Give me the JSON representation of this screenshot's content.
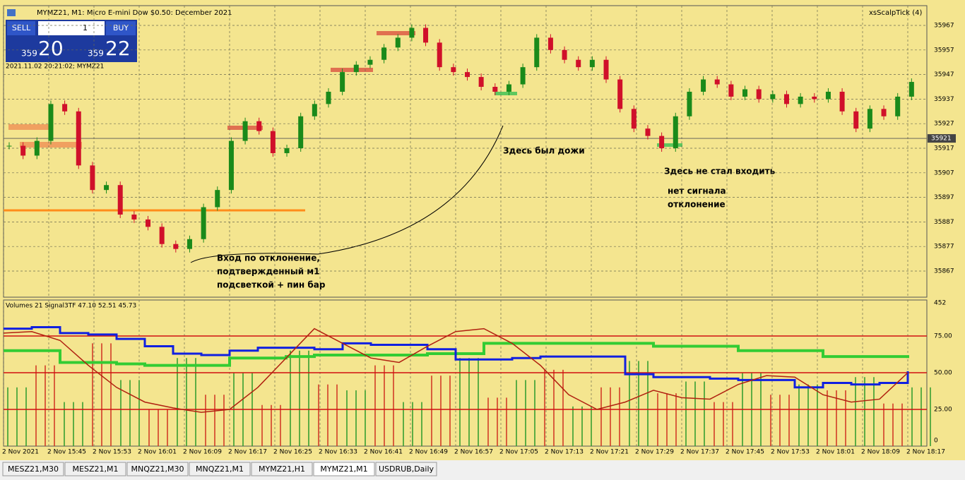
{
  "window": {
    "title": "MYMZ21, M1:  Micro E-mini Dow $0.50: December 2021",
    "indicator_name": "xsScalpTick (4)"
  },
  "trade_panel": {
    "sell": "SELL",
    "buy": "BUY",
    "lot": "1",
    "bid_big": "359",
    "bid_small": "20",
    "ask_big": "359",
    "ask_small": "22"
  },
  "timestamp": "2021.11.02 20:21:02; MYMZ21",
  "price_chart": {
    "ylim": [
      35862,
      35972
    ],
    "yticks": [
      35967,
      35957,
      35947,
      35937,
      35927,
      35917,
      35907,
      35897,
      35887,
      35877,
      35867
    ],
    "current_price": 35921,
    "closes": [
      35918,
      35914,
      35920,
      35935,
      35932,
      35910,
      35900,
      35902,
      35890,
      35888,
      35885,
      35878,
      35876,
      35880,
      35893,
      35900,
      35920,
      35928,
      35924,
      35915,
      35917,
      35930,
      35935,
      35940,
      35948,
      35951,
      35953,
      35958,
      35962,
      35966,
      35960,
      35950,
      35948,
      35946,
      35942,
      35940,
      35943,
      35950,
      35962,
      35957,
      35953,
      35950,
      35953,
      35945,
      35933,
      35925,
      35922,
      35917,
      35930,
      35940,
      35945,
      35943,
      35938,
      35941,
      35937,
      35939,
      35935,
      35938,
      35937,
      35940,
      35932,
      35925,
      35933,
      35930,
      35938,
      35944
    ]
  },
  "annotations": [
    "Вход по отклонение,",
    "подтвержденный м1",
    "подсветкой + пин бар",
    "Здесь был дожи",
    "Здесь не стал входить",
    "нет сигнала",
    "отклонение"
  ],
  "indicator": {
    "label": "Volumes 21 Signal3TF 47.10 52.51 45.73",
    "ylim": [
      0,
      100
    ],
    "top_label": "452",
    "bottom_label": "0",
    "yticks": [
      {
        "value": 75,
        "label": "75.00"
      },
      {
        "value": 50,
        "label": "50.00"
      },
      {
        "value": 25,
        "label": "25.00"
      }
    ],
    "blue": [
      80,
      81,
      77,
      76,
      73,
      68,
      63,
      62,
      65,
      67,
      67,
      66,
      70,
      69,
      69,
      66,
      59,
      59,
      60,
      61,
      61,
      61,
      49,
      47,
      47,
      46,
      45,
      45,
      40,
      43,
      42,
      43,
      51
    ],
    "green": [
      65,
      65,
      57,
      57,
      56,
      55,
      55,
      55,
      60,
      60,
      61,
      62,
      62,
      62,
      62,
      63,
      63,
      70,
      70,
      70,
      70,
      70,
      70,
      68,
      68,
      68,
      65,
      65,
      65,
      61,
      61,
      61,
      60
    ],
    "brown": [
      77,
      78,
      72,
      55,
      40,
      30,
      26,
      23,
      25,
      40,
      60,
      80,
      70,
      60,
      57,
      68,
      78,
      80,
      70,
      55,
      35,
      25,
      30,
      38,
      33,
      32,
      42,
      48,
      47,
      35,
      30,
      32,
      50
    ],
    "volumes": [
      40,
      55,
      30,
      70,
      45,
      25,
      60,
      35,
      50,
      28,
      65,
      42,
      38,
      55,
      30,
      48,
      60,
      33,
      45,
      52,
      27,
      40,
      58,
      36,
      44,
      30,
      50,
      35,
      42,
      38,
      47,
      29,
      40
    ]
  },
  "time_labels": [
    "2 Nov 2021",
    "2 Nov 15:45",
    "2 Nov 15:53",
    "2 Nov 16:01",
    "2 Nov 16:09",
    "2 Nov 16:17",
    "2 Nov 16:25",
    "2 Nov 16:33",
    "2 Nov 16:41",
    "2 Nov 16:49",
    "2 Nov 16:57",
    "2 Nov 17:05",
    "2 Nov 17:13",
    "2 Nov 17:21",
    "2 Nov 17:29",
    "2 Nov 17:37",
    "2 Nov 17:45",
    "2 Nov 17:53",
    "2 Nov 18:01",
    "2 Nov 18:09",
    "2 Nov 18:17"
  ],
  "tabs": [
    "MESZ21,M30",
    "MESZ21,M1",
    "MNQZ21,M30",
    "MNQZ21,M1",
    "MYMZ21,H1",
    "MYMZ21,M1",
    "USDRUB,Daily"
  ],
  "active_tab": 5
}
